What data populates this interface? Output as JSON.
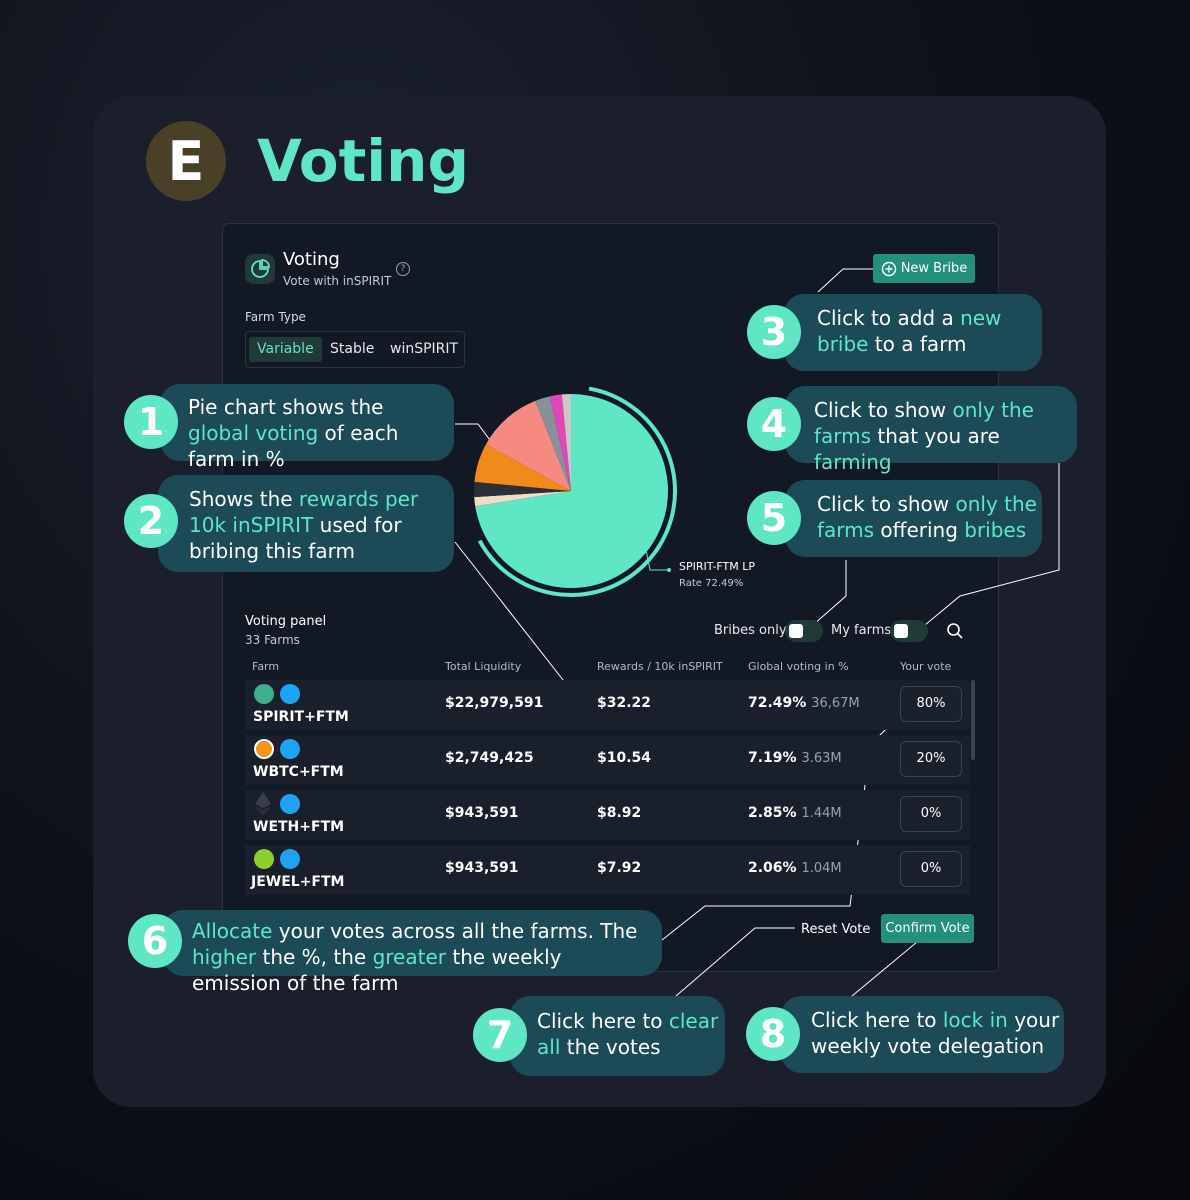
{
  "section": {
    "badge_letter": "E",
    "title": "Voting"
  },
  "card": {
    "title": "Voting",
    "subtitle": "Vote with inSPIRIT",
    "help_icon": "?",
    "farm_type_label": "Farm Type",
    "farm_type_tabs": [
      "Variable",
      "Stable",
      "winSPIRIT"
    ],
    "active_tab": "Variable",
    "new_bribe_label": "New Bribe"
  },
  "pie": {
    "label_name": "SPIRIT-FTM LP",
    "label_rate": "Rate 72.49%"
  },
  "chart_data": {
    "type": "pie",
    "slices": [
      {
        "value": 72.49,
        "color": "#5ee6c5"
      },
      {
        "value": 1.5,
        "color": "#f0dcc0"
      },
      {
        "value": 2.5,
        "color": "#2b2f3a"
      },
      {
        "value": 6.5,
        "color": "#f08a1a"
      },
      {
        "value": 11.0,
        "color": "#f48a80"
      },
      {
        "value": 2.5,
        "color": "#8a8f99"
      },
      {
        "value": 2.0,
        "color": "#e048b8"
      },
      {
        "value": 1.5,
        "color": "#c9c9c9"
      }
    ]
  },
  "panel": {
    "title": "Voting panel",
    "count": "33 Farms",
    "bribes_only_label": "Bribes only",
    "my_farms_label": "My farms"
  },
  "table": {
    "headers": [
      "Farm",
      "Total Liquidity",
      "Rewards / 10k inSPIRIT",
      "Global voting in %",
      "Your vote"
    ],
    "rows": [
      {
        "farm": "SPIRIT+FTM",
        "liquidity": "$22,979,591",
        "rewards": "$32.22",
        "pct": "72.49%",
        "votes": "36,67M",
        "vote": "80%",
        "token_color": "#3fae8f"
      },
      {
        "farm": "WBTC+FTM",
        "liquidity": "$2,749,425",
        "rewards": "$10.54",
        "pct": "7.19%",
        "votes": "3.63M",
        "vote": "20%",
        "token_color": "#f7931a"
      },
      {
        "farm": "WETH+FTM",
        "liquidity": "$943,591",
        "rewards": "$8.92",
        "pct": "2.85%",
        "votes": "1.44M",
        "vote": "0%",
        "token_color": "#2b2f3a"
      },
      {
        "farm": "JEWEL+FTM",
        "liquidity": "$943,591",
        "rewards": "$7.92",
        "pct": "2.06%",
        "votes": "1.04M",
        "vote": "0%",
        "token_color": "#8fcf2a"
      }
    ]
  },
  "actions": {
    "reset": "Reset Vote",
    "confirm": "Confirm Vote"
  },
  "callouts": [
    {
      "num": "1",
      "parts": [
        "Pie chart shows the ",
        "global voting",
        " of each farm in %"
      ]
    },
    {
      "num": "2",
      "parts": [
        "Shows the ",
        "rewards per 10k inSPIRIT",
        " used for bribing this farm"
      ]
    },
    {
      "num": "3",
      "parts": [
        "Click to add a ",
        "new bribe",
        " to a farm"
      ]
    },
    {
      "num": "4",
      "parts": [
        "Click to show ",
        "only the farms",
        " that you are ",
        "farming"
      ]
    },
    {
      "num": "5",
      "parts": [
        "Click to show ",
        "only the farms",
        " offering ",
        "bribes"
      ]
    },
    {
      "num": "6",
      "parts": [
        "Allocate",
        " your votes across all the farms. The ",
        "higher",
        " the %, the ",
        "greater",
        " the weekly emission of the farm"
      ]
    },
    {
      "num": "7",
      "parts": [
        "Click here to ",
        "clear all",
        " the votes"
      ]
    },
    {
      "num": "8",
      "parts": [
        "Click here to ",
        "lock in",
        " your weekly vote delegation"
      ]
    }
  ],
  "colors": {
    "accent": "#5ee6c5",
    "button": "#23907c",
    "callout": "#1d4a57",
    "blue_token": "#1ea2f2"
  }
}
